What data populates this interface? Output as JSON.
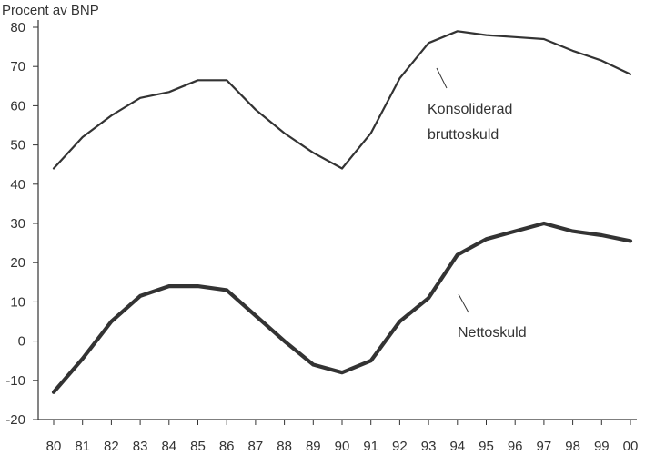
{
  "chart_data": {
    "type": "line",
    "title": "",
    "ylabel": "Procent av BNP",
    "xlabel": "",
    "ylim": [
      -20,
      80
    ],
    "yticks": [
      -20,
      -10,
      0,
      10,
      20,
      30,
      40,
      50,
      60,
      70,
      80
    ],
    "categories": [
      "80",
      "81",
      "82",
      "83",
      "84",
      "85",
      "86",
      "87",
      "88",
      "89",
      "90",
      "91",
      "92",
      "93",
      "94",
      "95",
      "96",
      "97",
      "98",
      "99",
      "00"
    ],
    "grid": false,
    "series": [
      {
        "name": "Konsoliderad bruttoskuld",
        "name_lines": [
          "Konsoliderad",
          "bruttoskuld"
        ],
        "values": [
          44,
          52,
          57.5,
          62,
          63.5,
          66.5,
          66.5,
          59,
          53,
          48,
          44,
          53,
          67,
          76,
          79,
          78,
          77.5,
          77,
          74,
          71.5,
          68
        ],
        "color": "#333333"
      },
      {
        "name": "Nettoskuld",
        "name_lines": [
          "Nettoskuld"
        ],
        "values": [
          -13,
          -4.5,
          5,
          11.5,
          14,
          14,
          13,
          6.5,
          0,
          -6,
          -8,
          -5,
          5,
          11,
          22,
          26,
          28,
          30,
          28,
          27,
          25.5
        ],
        "color": "#333333"
      }
    ]
  }
}
